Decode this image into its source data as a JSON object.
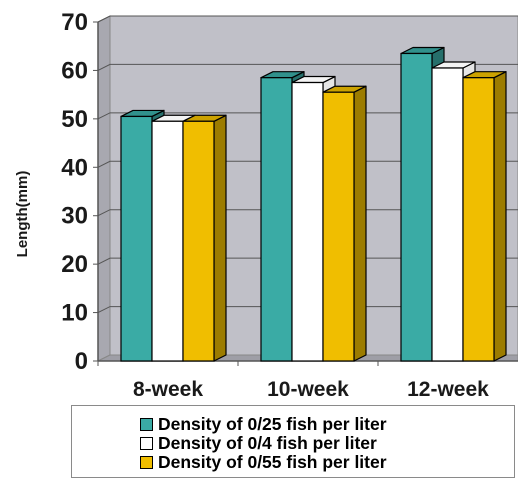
{
  "chart_data": {
    "type": "bar",
    "categories": [
      "8-week",
      "10-week",
      "12-week"
    ],
    "series": [
      {
        "name": "Density of 0/25 fish per liter",
        "values": [
          50.5,
          58.5,
          63.5
        ],
        "color": "#3aaba5"
      },
      {
        "name": "Density of 0/4 fish per liter",
        "values": [
          49.5,
          57.5,
          60.5
        ],
        "color": "#ffffff"
      },
      {
        "name": "Density of 0/55 fish per liter",
        "values": [
          49.5,
          55.5,
          58.5
        ],
        "color": "#f0be00"
      }
    ],
    "ylabel": "Length(mm)",
    "ylim": [
      0,
      70
    ],
    "yticks": [
      0,
      10,
      20,
      30,
      40,
      50,
      60,
      70
    ],
    "grid": true,
    "legend_position": "bottom",
    "plot_background": "#c0c0c8"
  }
}
